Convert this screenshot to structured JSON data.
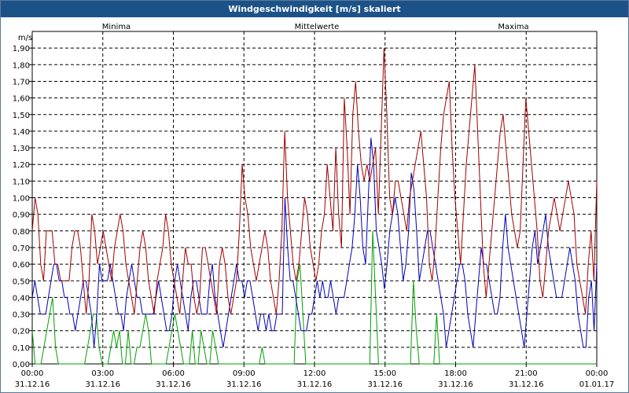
{
  "window": {
    "title": "Windgeschwindigkeit [m/s] skaliert"
  },
  "chart_data": {
    "type": "line",
    "title": "Windgeschwindigkeit [m/s] skaliert",
    "ylabel": "m/s",
    "xlabel": "",
    "ylim": [
      0,
      2.0
    ],
    "xlim": [
      0,
      24
    ],
    "grid": true,
    "y_ticks": [
      "0,00",
      "0,10",
      "0,20",
      "0,30",
      "0,40",
      "0,50",
      "0,60",
      "0,70",
      "0,80",
      "0,90",
      "1,00",
      "1,10",
      "1,20",
      "1,30",
      "1,40",
      "1,50",
      "1,60",
      "1,70",
      "1,80",
      "1,90"
    ],
    "x_ticks": [
      {
        "time": "00:00",
        "date": "31.12.16"
      },
      {
        "time": "03:00",
        "date": "31.12.16"
      },
      {
        "time": "06:00",
        "date": "31.12.16"
      },
      {
        "time": "09:00",
        "date": "31.12.16"
      },
      {
        "time": "12:00",
        "date": "31.12.16"
      },
      {
        "time": "15:00",
        "date": "31.12.16"
      },
      {
        "time": "18:00",
        "date": "31.12.16"
      },
      {
        "time": "21:00",
        "date": "31.12.16"
      },
      {
        "time": "00:00",
        "date": "01.01.17"
      }
    ],
    "series": [
      {
        "name": "Minima",
        "color": "#00a000",
        "values": [
          0.2,
          0,
          0,
          0,
          0.1,
          0.2,
          0.3,
          0.4,
          0.1,
          0,
          0,
          0,
          0,
          0,
          0,
          0,
          0,
          0,
          0,
          0.1,
          0.2,
          0.3,
          0.3,
          0.1,
          0,
          0,
          0,
          0.1,
          0.2,
          0.1,
          0.2,
          0,
          0,
          0.2,
          0,
          0,
          0.1,
          0.1,
          0.2,
          0.3,
          0.2,
          0,
          0,
          0,
          0,
          0,
          0,
          0.1,
          0.2,
          0.3,
          0.2,
          0.1,
          0,
          0,
          0,
          0.2,
          0,
          0,
          0.2,
          0.1,
          0,
          0,
          0.2,
          0.1,
          0,
          0,
          0,
          0,
          0,
          0,
          0,
          0,
          0,
          0,
          0,
          0,
          0,
          0,
          0,
          0.1,
          0,
          0,
          0,
          0,
          0,
          0,
          0,
          0,
          0,
          0,
          0,
          0.5,
          0.6,
          0.3,
          0,
          0,
          0,
          0,
          0,
          0,
          0,
          0,
          0,
          0,
          0,
          0,
          0,
          0,
          0,
          0,
          0,
          0,
          0,
          0,
          0,
          0,
          0,
          0.8,
          0.4,
          0,
          0,
          0,
          0,
          0,
          0,
          0,
          0,
          0,
          0,
          0,
          0,
          0.5,
          0.2,
          0,
          0,
          0,
          0,
          0,
          0,
          0.3,
          0,
          0,
          0,
          0,
          0,
          0,
          0,
          0,
          0,
          0,
          0,
          0,
          0,
          0,
          0,
          0,
          0,
          0,
          0,
          0,
          0,
          0,
          0,
          0,
          0,
          0,
          0,
          0,
          0,
          0,
          0,
          0,
          0,
          0,
          0,
          0,
          0,
          0,
          0,
          0,
          0,
          0,
          0,
          0,
          0,
          0,
          0,
          0,
          0,
          0,
          0,
          0,
          0,
          0,
          0
        ]
      },
      {
        "name": "Mittelwerte",
        "color": "#0000b4",
        "values": [
          0.4,
          0.5,
          0.4,
          0.3,
          0.3,
          0.3,
          0.4,
          0.5,
          0.6,
          0.6,
          0.5,
          0.5,
          0.4,
          0.4,
          0.3,
          0.3,
          0.2,
          0.3,
          0.4,
          0.5,
          0.5,
          0.4,
          0.3,
          0.1,
          0.3,
          0.6,
          0.5,
          0.5,
          0.5,
          0.6,
          0.5,
          0.4,
          0.3,
          0.3,
          0.2,
          0.4,
          0.5,
          0.6,
          0.5,
          0.4,
          0.4,
          0.3,
          0.3,
          0.3,
          0.3,
          0.3,
          0.4,
          0.5,
          0.4,
          0.3,
          0.2,
          0.2,
          0.3,
          0.5,
          0.6,
          0.5,
          0.4,
          0.3,
          0.2,
          0.4,
          0.5,
          0.5,
          0.4,
          0.3,
          0.3,
          0.3,
          0.5,
          0.6,
          0.4,
          0.3,
          0.2,
          0.1,
          0.2,
          0.3,
          0.4,
          0.5,
          0.6,
          0.5,
          0.5,
          0.4,
          0.5,
          0.5,
          0.4,
          0.3,
          0.2,
          0.3,
          0.3,
          0.2,
          0.3,
          0.2,
          0.2,
          0.3,
          0.3,
          0.3,
          1.0,
          0.7,
          0.5,
          0.5,
          0.4,
          0.3,
          0.2,
          0.2,
          0.2,
          0.3,
          0.3,
          0.4,
          0.5,
          0.4,
          0.5,
          0.4,
          0.4,
          0.5,
          0.4,
          0.3,
          0.4,
          0.4,
          0.4,
          0.5,
          0.6,
          0.7,
          0.9,
          1.2,
          1.0,
          0.7,
          0.6,
          1.0,
          1.36,
          1.2,
          0.8,
          0.7,
          0.6,
          0.45,
          0.6,
          0.8,
          0.9,
          1.0,
          0.9,
          0.7,
          0.5,
          0.6,
          0.8,
          1.15,
          1.05,
          0.8,
          0.5,
          0.6,
          0.7,
          0.8,
          0.8,
          0.7,
          0.6,
          0.5,
          0.4,
          0.3,
          0.1,
          0.2,
          0.3,
          0.4,
          0.5,
          0.6,
          0.6,
          0.5,
          0.3,
          0.2,
          0.1,
          0.3,
          0.5,
          0.7,
          0.6,
          0.6,
          0.5,
          0.4,
          0.3,
          0.3,
          0.4,
          0.7,
          0.9,
          0.7,
          0.6,
          0.5,
          0.4,
          0.3,
          0.2,
          0.1,
          0.3,
          0.5,
          0.7,
          0.8,
          0.6,
          0.7,
          0.8,
          0.9,
          0.7,
          0.6,
          0.5,
          0.4,
          0.4,
          0.4,
          0.5,
          0.6,
          0.7,
          0.6,
          0.5,
          0.3,
          0.2,
          0.1,
          0.1,
          0.4,
          0.5,
          0.2,
          0.6
        ]
      },
      {
        "name": "Maxima",
        "color": "#a00000",
        "values": [
          0.8,
          1.0,
          0.9,
          0.6,
          0.5,
          0.8,
          0.8,
          0.8,
          0.6,
          0.6,
          0.5,
          0.5,
          0.5,
          0.5,
          0.7,
          0.8,
          0.8,
          0.7,
          0.5,
          0.3,
          0.5,
          0.9,
          0.8,
          0.6,
          0.7,
          0.8,
          0.7,
          0.6,
          0.5,
          0.7,
          0.8,
          0.9,
          0.8,
          0.6,
          0.5,
          0.4,
          0.3,
          0.5,
          0.7,
          0.8,
          0.7,
          0.5,
          0.4,
          0.3,
          0.5,
          0.6,
          0.7,
          0.9,
          0.8,
          0.6,
          0.5,
          0.4,
          0.3,
          0.5,
          0.7,
          0.6,
          0.6,
          0.4,
          0.3,
          0.4,
          0.7,
          0.7,
          0.6,
          0.5,
          0.4,
          0.3,
          0.6,
          0.7,
          0.6,
          0.4,
          0.3,
          0.4,
          0.5,
          0.8,
          1.2,
          1.0,
          0.9,
          0.7,
          0.6,
          0.5,
          0.6,
          0.7,
          0.8,
          0.7,
          0.5,
          0.4,
          0.3,
          0.5,
          0.8,
          1.4,
          1.0,
          0.8,
          0.6,
          0.5,
          0.6,
          0.8,
          1.0,
          0.9,
          0.7,
          0.6,
          0.5,
          0.6,
          0.8,
          0.9,
          1.2,
          1.0,
          0.8,
          1.3,
          0.9,
          0.7,
          1.6,
          1.3,
          0.9,
          1.5,
          1.7,
          1.4,
          1.2,
          1.1,
          1.2,
          1.1,
          1.2,
          1.3,
          0.9,
          1.4,
          1.9,
          1.5,
          1.0,
          0.9,
          1.1,
          1.1,
          1.0,
          0.9,
          0.8,
          1.0,
          1.1,
          1.2,
          1.3,
          1.4,
          1.2,
          1.0,
          0.6,
          0.5,
          0.7,
          1.0,
          1.3,
          1.5,
          1.6,
          1.7,
          1.3,
          1.0,
          0.8,
          0.6,
          0.9,
          1.2,
          1.4,
          1.6,
          1.8,
          1.4,
          1.0,
          0.6,
          0.4,
          0.6,
          0.8,
          1.0,
          1.2,
          1.4,
          1.5,
          1.3,
          1.1,
          0.9,
          0.8,
          0.7,
          0.8,
          1.2,
          1.6,
          1.4,
          1.2,
          1.0,
          0.8,
          0.5,
          0.4,
          0.6,
          0.8,
          0.9,
          1.0,
          0.9,
          0.8,
          0.9,
          1.0,
          1.1,
          1.0,
          0.9,
          0.6,
          0.5,
          0.4,
          0.3,
          0.6,
          0.8,
          0.5,
          1.1
        ]
      }
    ]
  }
}
